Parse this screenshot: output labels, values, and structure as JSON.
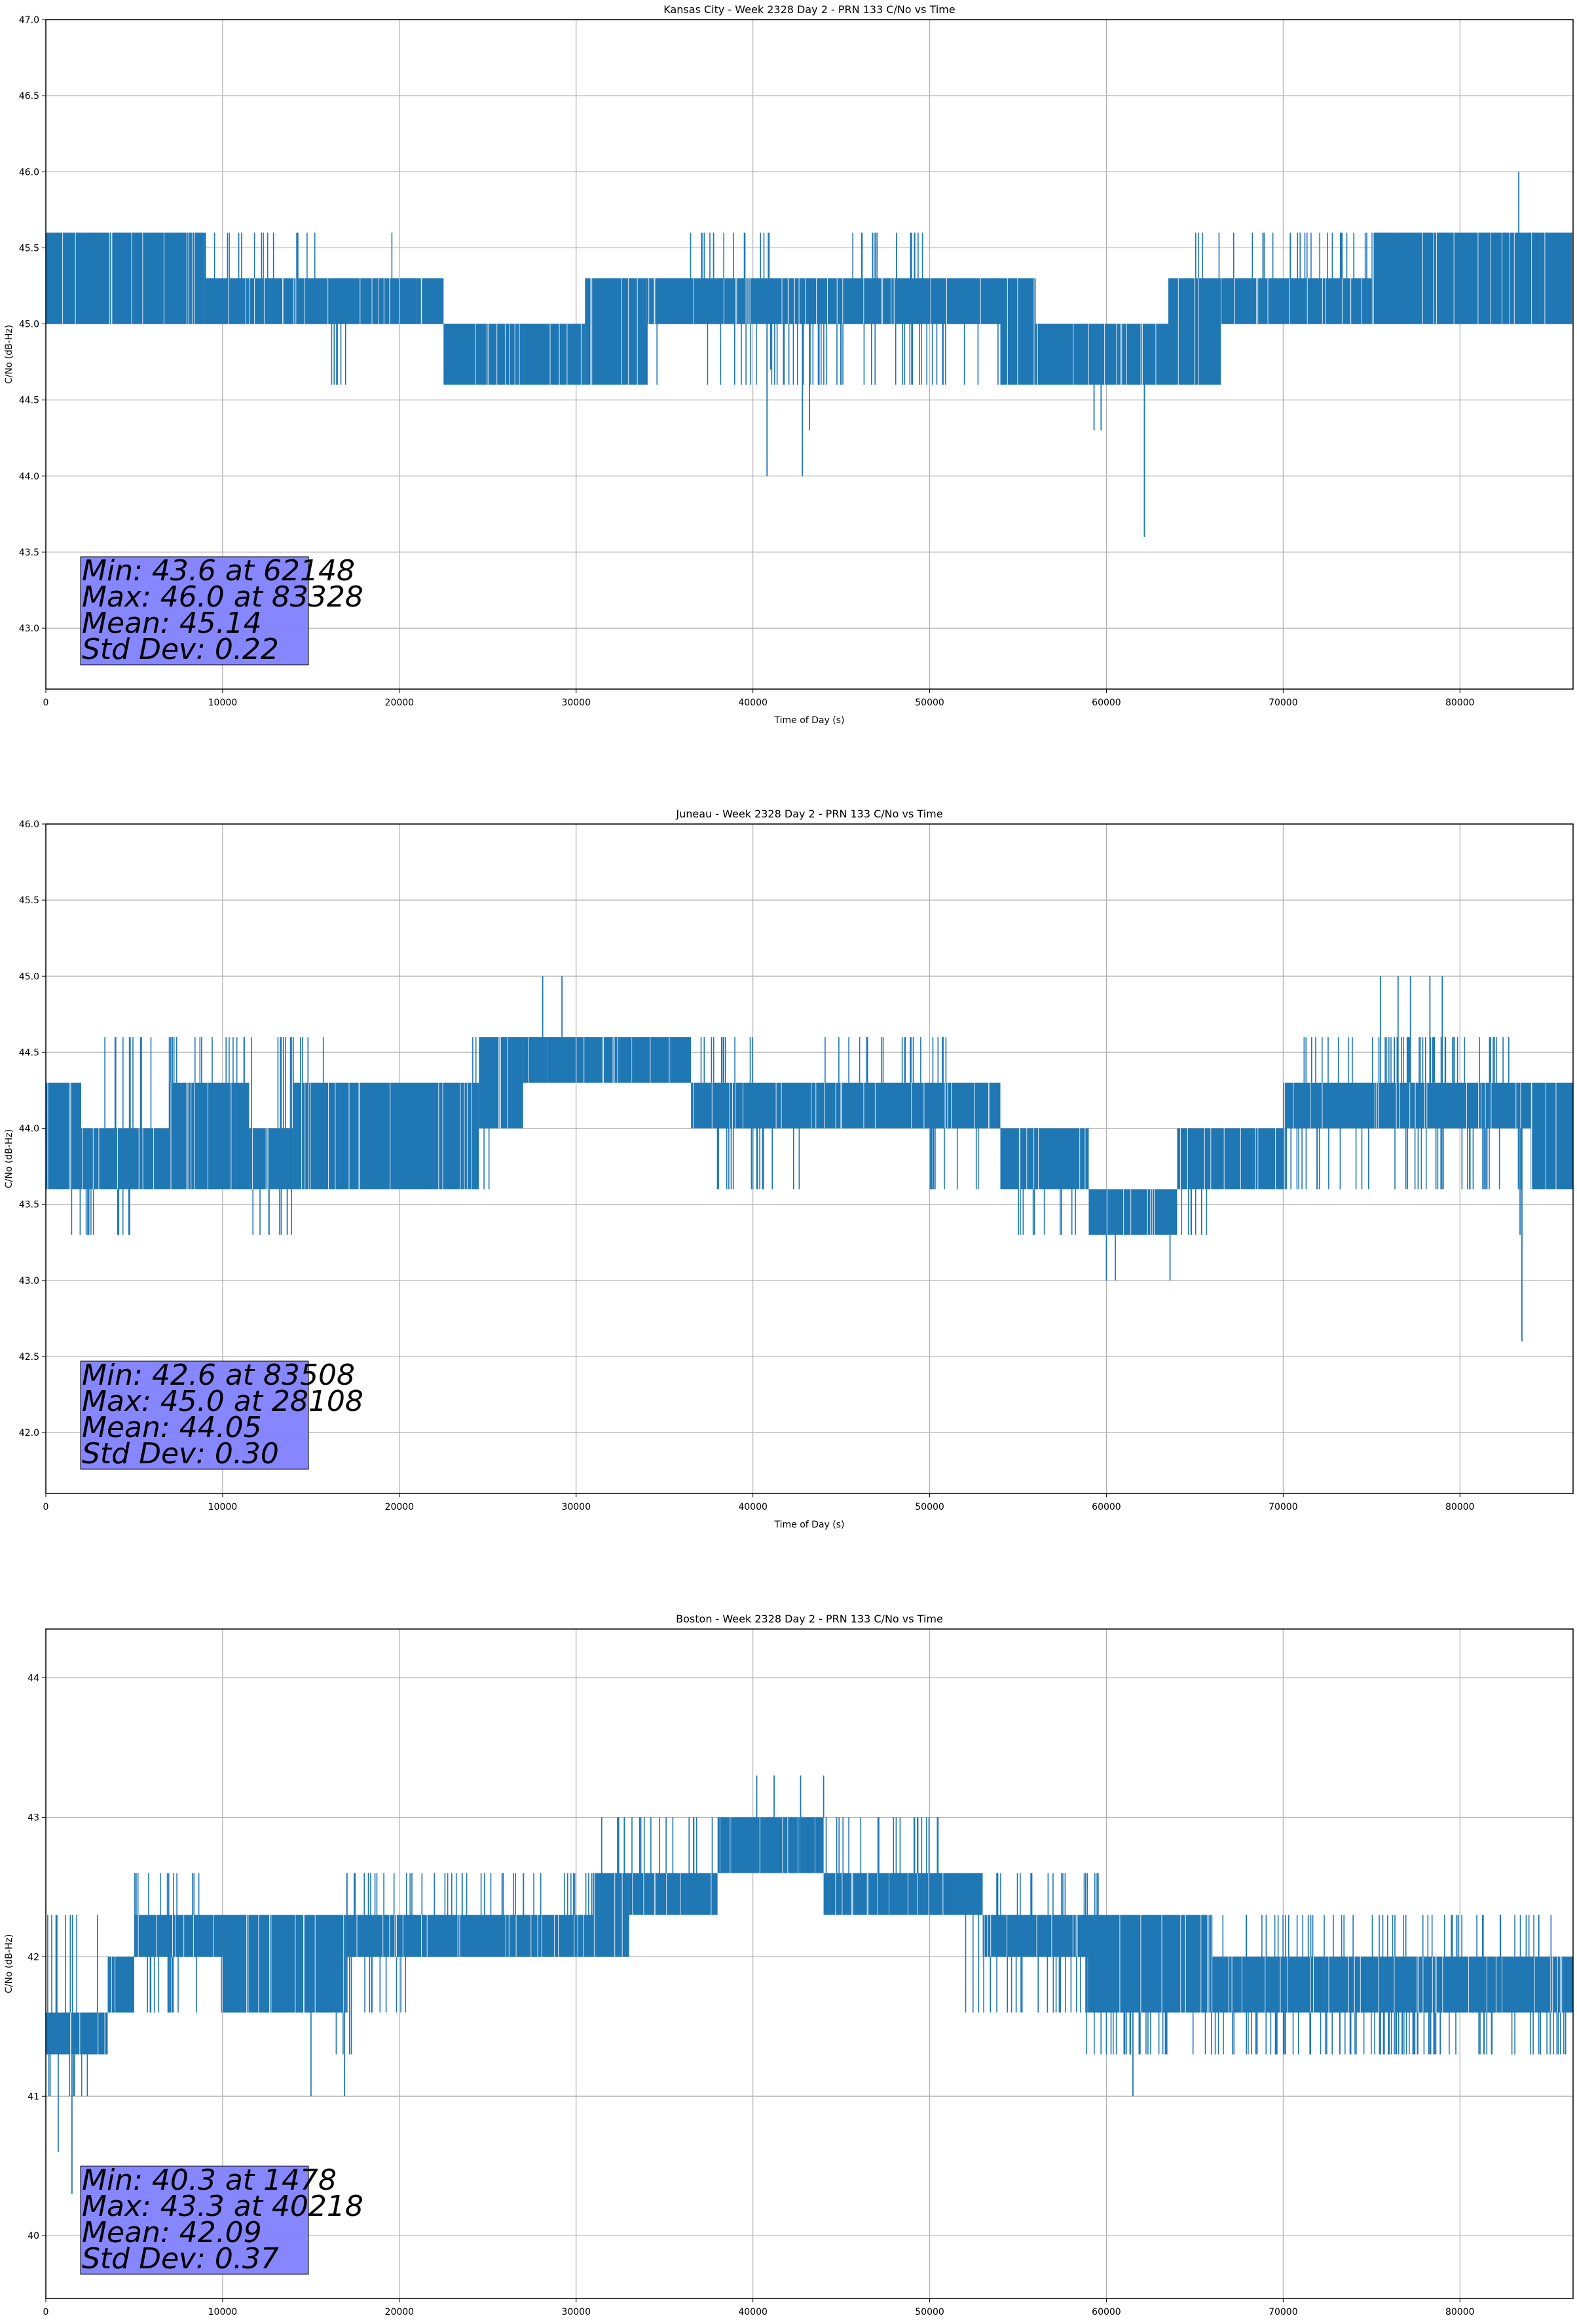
{
  "chart_data": [
    {
      "type": "line",
      "title": "Kansas City - Week 2328 Day 2 - PRN 133 C/No vs Time",
      "xlabel": "Time of Day (s)",
      "ylabel": "C/No (dB-Hz)",
      "xlim": [
        0,
        86400
      ],
      "ylim": [
        42.6,
        47.0
      ],
      "xticks": [
        0,
        10000,
        20000,
        30000,
        40000,
        50000,
        60000,
        70000,
        80000
      ],
      "yticks": [
        "43.0",
        "43.5",
        "44.0",
        "44.5",
        "45.0",
        "45.5",
        "46.0",
        "46.5",
        "47.0"
      ],
      "grid": true,
      "line_color": "#1f77b4",
      "stats_box_color": "#8080ff",
      "stats": [
        "Min: 43.6 at 62148",
        "Max: 46.0 at 83328",
        "Mean: 45.14",
        "Std Dev: 0.22"
      ],
      "series": [
        {
          "bands": [
            {
              "x": [
                0,
                5500
              ],
              "low": 45.0,
              "high": 45.6
            },
            {
              "x": [
                5500,
                9000
              ],
              "low": 45.0,
              "high": 45.6
            },
            {
              "x": [
                9000,
                21000
              ],
              "low": 45.0,
              "high": 45.3
            },
            {
              "x": [
                21000,
                22500
              ],
              "low": 45.0,
              "high": 45.3
            },
            {
              "x": [
                22500,
                30500
              ],
              "low": 44.6,
              "high": 45.0
            },
            {
              "x": [
                30500,
                34000
              ],
              "low": 44.6,
              "high": 45.3
            },
            {
              "x": [
                34000,
                54000
              ],
              "low": 45.0,
              "high": 45.3
            },
            {
              "x": [
                54000,
                56000
              ],
              "low": 44.6,
              "high": 45.3
            },
            {
              "x": [
                56000,
                63500
              ],
              "low": 44.6,
              "high": 45.0
            },
            {
              "x": [
                63500,
                66500
              ],
              "low": 44.6,
              "high": 45.3
            },
            {
              "x": [
                66500,
                75000
              ],
              "low": 45.0,
              "high": 45.3
            },
            {
              "x": [
                75000,
                86400
              ],
              "low": 45.0,
              "high": 45.6
            }
          ],
          "sparse_ticks": [
            {
              "x": [
                2000,
                8000
              ],
              "value": 45.6
            },
            {
              "x": [
                9000,
                13000
              ],
              "value": 45.6
            },
            {
              "x": [
                14000,
                16000
              ],
              "value": 45.6
            },
            {
              "x": [
                19500,
                19600
              ],
              "value": 45.6
            },
            {
              "x": [
                36000,
                41000
              ],
              "value": 45.6
            },
            {
              "x": [
                45500,
                50500
              ],
              "value": 45.6
            },
            {
              "x": [
                64500,
                86400
              ],
              "value": 45.6
            },
            {
              "x": [
                16000,
                18000
              ],
              "value": 44.6
            },
            {
              "x": [
                30500,
                35000
              ],
              "value": 44.6
            },
            {
              "x": [
                37000,
                47000
              ],
              "value": 44.6
            },
            {
              "x": [
                48000,
                66000
              ],
              "value": 44.6
            },
            {
              "x": [
                37500,
                40000
              ],
              "value": 45.0
            },
            {
              "x": [
                49000,
                50000
              ],
              "value": 45.0
            }
          ],
          "spikes": [
            {
              "x": 40800,
              "low": 44.0
            },
            {
              "x": 42800,
              "low": 44.0
            },
            {
              "x": 43200,
              "low": 44.3
            },
            {
              "x": 59300,
              "low": 44.3
            },
            {
              "x": 59700,
              "low": 44.3
            },
            {
              "x": 62148,
              "low": 43.6
            },
            {
              "x": 41000,
              "low": 44.7
            },
            {
              "x": 83328,
              "high": 46.0
            }
          ]
        }
      ]
    },
    {
      "type": "line",
      "title": "Juneau - Week 2328 Day 2 - PRN 133 C/No vs Time",
      "xlabel": "Time of Day (s)",
      "ylabel": "C/No (dB-Hz)",
      "xlim": [
        0,
        86400
      ],
      "ylim": [
        41.6,
        46.0
      ],
      "xticks": [
        0,
        10000,
        20000,
        30000,
        40000,
        50000,
        60000,
        70000,
        80000
      ],
      "yticks": [
        "42.0",
        "42.5",
        "43.0",
        "43.5",
        "44.0",
        "44.5",
        "45.0",
        "45.5",
        "46.0"
      ],
      "grid": true,
      "line_color": "#1f77b4",
      "stats_box_color": "#8080ff",
      "stats": [
        "Min: 42.6 at 83508",
        "Max: 45.0 at 28108",
        "Mean: 44.05",
        "Std Dev: 0.30"
      ],
      "series": [
        {
          "bands": [
            {
              "x": [
                0,
                2000
              ],
              "low": 43.6,
              "high": 44.3
            },
            {
              "x": [
                2000,
                7000
              ],
              "low": 43.6,
              "high": 44.0
            },
            {
              "x": [
                7000,
                11500
              ],
              "low": 43.6,
              "high": 44.3
            },
            {
              "x": [
                11500,
                14000
              ],
              "low": 43.6,
              "high": 44.0
            },
            {
              "x": [
                14000,
                24500
              ],
              "low": 43.6,
              "high": 44.3
            },
            {
              "x": [
                24500,
                27000
              ],
              "low": 44.0,
              "high": 44.6
            },
            {
              "x": [
                27000,
                36500
              ],
              "low": 44.3,
              "high": 44.6
            },
            {
              "x": [
                36500,
                54000
              ],
              "low": 44.0,
              "high": 44.3
            },
            {
              "x": [
                54000,
                59000
              ],
              "low": 43.6,
              "high": 44.0
            },
            {
              "x": [
                59000,
                64000
              ],
              "low": 43.3,
              "high": 43.6
            },
            {
              "x": [
                64000,
                70000
              ],
              "low": 43.6,
              "high": 44.0
            },
            {
              "x": [
                70000,
                84000
              ],
              "low": 44.0,
              "high": 44.3
            },
            {
              "x": [
                84000,
                86400
              ],
              "low": 43.6,
              "high": 44.3
            }
          ],
          "sparse_ticks": [
            {
              "x": [
                3000,
                16000
              ],
              "value": 44.6
            },
            {
              "x": [
                24000,
                40000
              ],
              "value": 44.6
            },
            {
              "x": [
                44000,
                51000
              ],
              "value": 44.6
            },
            {
              "x": [
                70500,
                83000
              ],
              "value": 44.6
            },
            {
              "x": [
                1000,
                5000
              ],
              "value": 43.3
            },
            {
              "x": [
                11000,
                14000
              ],
              "value": 43.3
            },
            {
              "x": [
                55000,
                66000
              ],
              "value": 43.3
            },
            {
              "x": [
                20000,
                26000
              ],
              "value": 43.6
            },
            {
              "x": [
                37000,
                43000
              ],
              "value": 43.6
            },
            {
              "x": [
                50000,
                53000
              ],
              "value": 43.6
            },
            {
              "x": [
                69000,
                86000
              ],
              "value": 43.6
            },
            {
              "x": [
                76000,
                80000
              ],
              "value": 44.6
            }
          ],
          "spikes": [
            {
              "x": 28108,
              "high": 45.0
            },
            {
              "x": 29200,
              "high": 45.0
            },
            {
              "x": 75500,
              "high": 45.0
            },
            {
              "x": 76500,
              "high": 45.0
            },
            {
              "x": 77200,
              "high": 45.0
            },
            {
              "x": 78300,
              "high": 45.0
            },
            {
              "x": 79000,
              "high": 45.0
            },
            {
              "x": 60000,
              "low": 43.0
            },
            {
              "x": 60500,
              "low": 43.0
            },
            {
              "x": 63600,
              "low": 43.0
            },
            {
              "x": 83400,
              "low": 43.3
            },
            {
              "x": 83508,
              "low": 42.6
            }
          ]
        }
      ]
    },
    {
      "type": "line",
      "title": "Boston - Week 2328 Day 2 - PRN 133 C/No vs Time",
      "xlabel": "Time of Day (s)",
      "ylabel": "C/No (dB-Hz)",
      "xlim": [
        0,
        86400
      ],
      "ylim": [
        39.55,
        44.35
      ],
      "xticks": [
        0,
        10000,
        20000,
        30000,
        40000,
        50000,
        60000,
        70000,
        80000
      ],
      "yticks": [
        "40",
        "41",
        "42",
        "43",
        "44"
      ],
      "grid": true,
      "line_color": "#1f77b4",
      "stats_box_color": "#8080ff",
      "stats": [
        "Min: 40.3 at 1478",
        "Max: 43.3 at 40218",
        "Mean: 42.09",
        "Std Dev: 0.37"
      ],
      "series": [
        {
          "bands": [
            {
              "x": [
                0,
                3500
              ],
              "low": 41.3,
              "high": 41.6
            },
            {
              "x": [
                3500,
                5000
              ],
              "low": 41.6,
              "high": 42.0
            },
            {
              "x": [
                5000,
                10000
              ],
              "low": 42.0,
              "high": 42.3
            },
            {
              "x": [
                10000,
                17000
              ],
              "low": 41.6,
              "high": 42.3
            },
            {
              "x": [
                17000,
                31000
              ],
              "low": 42.0,
              "high": 42.3
            },
            {
              "x": [
                31000,
                33000
              ],
              "low": 42.0,
              "high": 42.6
            },
            {
              "x": [
                33000,
                38000
              ],
              "low": 42.3,
              "high": 42.6
            },
            {
              "x": [
                38000,
                44000
              ],
              "low": 42.6,
              "high": 43.0
            },
            {
              "x": [
                44000,
                53000
              ],
              "low": 42.3,
              "high": 42.6
            },
            {
              "x": [
                53000,
                59000
              ],
              "low": 42.0,
              "high": 42.3
            },
            {
              "x": [
                59000,
                66000
              ],
              "low": 41.6,
              "high": 42.3
            },
            {
              "x": [
                66000,
                86400
              ],
              "low": 41.6,
              "high": 42.0
            }
          ],
          "sparse_ticks": [
            {
              "x": [
                0,
                2500
              ],
              "value": 41.0
            },
            {
              "x": [
                0,
                3000
              ],
              "value": 42.3
            },
            {
              "x": [
                3500,
                9000
              ],
              "value": 41.6
            },
            {
              "x": [
                5000,
                9000
              ],
              "value": 42.6
            },
            {
              "x": [
                9000,
                21000
              ],
              "value": 41.6
            },
            {
              "x": [
                17000,
                32000
              ],
              "value": 42.6
            },
            {
              "x": [
                16000,
                17500
              ],
              "value": 41.3
            },
            {
              "x": [
                31000,
                37000
              ],
              "value": 43.0
            },
            {
              "x": [
                37000,
                51000
              ],
              "value": 43.0
            },
            {
              "x": [
                47000,
                60000
              ],
              "value": 42.6
            },
            {
              "x": [
                52000,
                62000
              ],
              "value": 41.6
            },
            {
              "x": [
                58000,
                86000
              ],
              "value": 42.3
            },
            {
              "x": [
                58000,
                86000
              ],
              "value": 41.3
            },
            {
              "x": [
                68000,
                80000
              ],
              "value": 41.3
            }
          ],
          "spikes": [
            {
              "x": 700,
              "low": 40.6
            },
            {
              "x": 1478,
              "low": 40.3
            },
            {
              "x": 15000,
              "low": 41.0
            },
            {
              "x": 16900,
              "low": 41.0
            },
            {
              "x": 61500,
              "low": 41.0
            },
            {
              "x": 40218,
              "high": 43.3
            },
            {
              "x": 41200,
              "high": 43.3
            },
            {
              "x": 42700,
              "high": 43.3
            },
            {
              "x": 44000,
              "high": 43.3
            }
          ]
        }
      ]
    }
  ]
}
